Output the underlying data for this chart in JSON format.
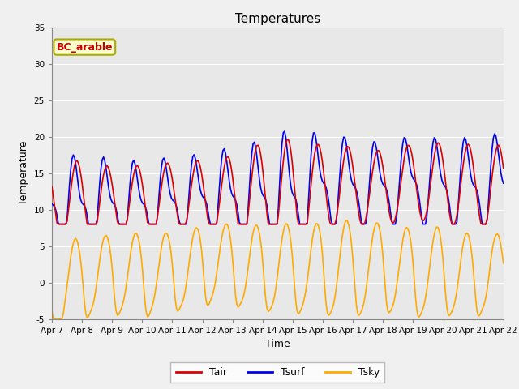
{
  "title": "Temperatures",
  "xlabel": "Time",
  "ylabel": "Temperature",
  "annotation_text": "BC_arable",
  "annotation_bg": "#ffffcc",
  "annotation_border": "#aaaa00",
  "annotation_text_color": "#cc0000",
  "ylim": [
    -5,
    35
  ],
  "yticks": [
    -5,
    0,
    5,
    10,
    15,
    20,
    25,
    30,
    35
  ],
  "xtick_labels": [
    "Apr 7",
    "Apr 8",
    "Apr 9",
    "Apr 10",
    "Apr 11",
    "Apr 12",
    "Apr 13",
    "Apr 14",
    "Apr 15",
    "Apr 16",
    "Apr 17",
    "Apr 18",
    "Apr 19",
    "Apr 20",
    "Apr 21",
    "Apr 22"
  ],
  "line_colors": {
    "Tair": "#dd0000",
    "Tsurf": "#0000ee",
    "Tsky": "#ffaa00"
  },
  "line_widths": {
    "Tair": 1.2,
    "Tsurf": 1.2,
    "Tsky": 1.2
  },
  "bg_color": "#e8e8e8",
  "plot_bg": "#f0f0f0",
  "grid_color": "#ffffff",
  "title_fontsize": 11,
  "axis_label_fontsize": 9,
  "tick_label_fontsize": 7.5,
  "legend_fontsize": 9
}
